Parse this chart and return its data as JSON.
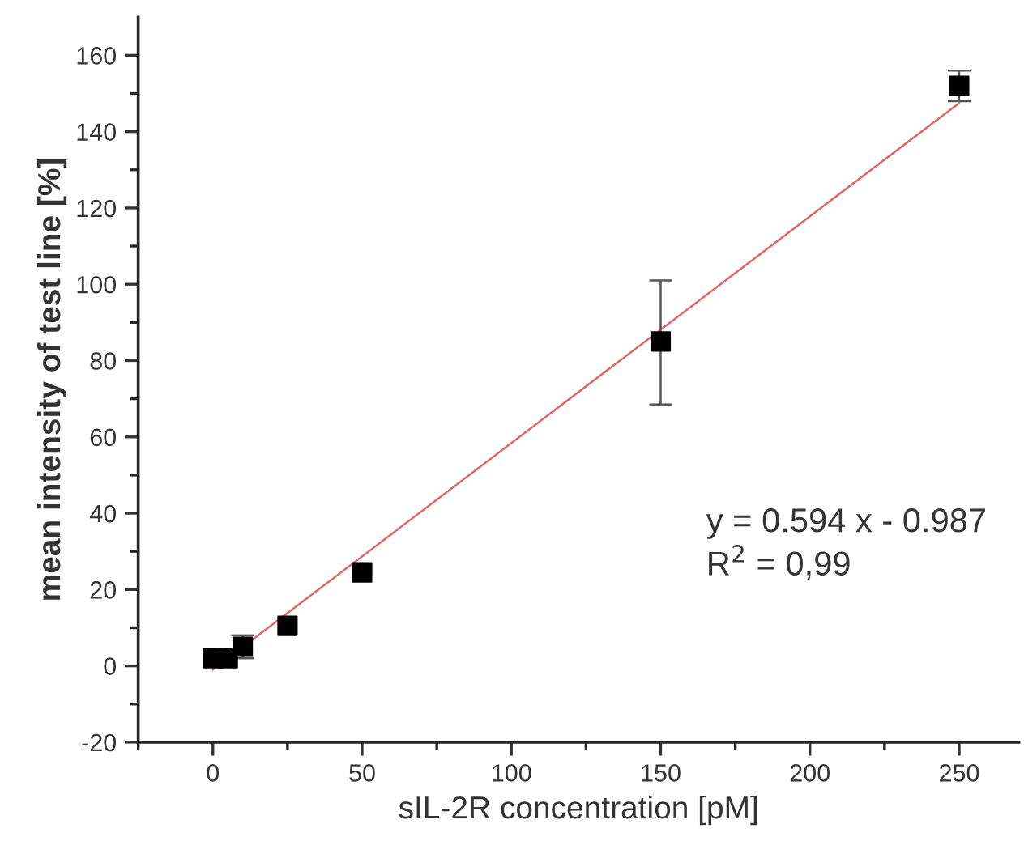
{
  "chart_data": {
    "type": "scatter",
    "xlabel": "sIL-2R concentration [pM]",
    "ylabel": "mean intensity of test line [%]",
    "x": [
      0,
      5,
      10,
      25,
      50,
      150,
      250
    ],
    "series": [
      {
        "color": "#000000",
        "marker": "square",
        "values": [
          2,
          2,
          5,
          10.5,
          24.5,
          85,
          152
        ],
        "errors": [
          null,
          null,
          3,
          null,
          null,
          [
            68.5,
            101
          ],
          [
            148,
            156
          ]
        ]
      },
      {
        "type": "line",
        "color": "#e06666",
        "x": [
          0,
          250
        ],
        "values": [
          -1,
          147.5
        ],
        "line_style": "solid",
        "marker": "none"
      }
    ],
    "xlim": [
      -25,
      270
    ],
    "ylim": [
      -20,
      170
    ],
    "xticks": [
      {
        "value": -25,
        "label": null
      },
      0,
      {
        "value": 25,
        "label": null
      },
      50,
      {
        "value": 75,
        "label": null
      },
      100,
      {
        "value": 125,
        "label": null
      },
      150,
      {
        "value": 175,
        "label": null
      },
      200,
      {
        "value": 225,
        "label": null
      },
      250
    ],
    "yticks": [
      -20,
      {
        "value": -10,
        "label": null
      },
      0,
      {
        "value": 10,
        "label": null
      },
      20,
      {
        "value": 30,
        "label": null
      },
      40,
      {
        "value": 50,
        "label": null
      },
      60,
      {
        "value": 70,
        "label": null
      },
      80,
      {
        "value": 90,
        "label": null
      },
      100,
      {
        "value": 110,
        "label": null
      },
      120,
      {
        "value": 130,
        "label": null
      },
      140,
      {
        "value": 150,
        "label": null
      },
      160
    ],
    "annotations": [
      "y = 0.594 x - 0.987",
      "R$^{2}$ = 0,99"
    ],
    "grid": false,
    "legend": false
  }
}
